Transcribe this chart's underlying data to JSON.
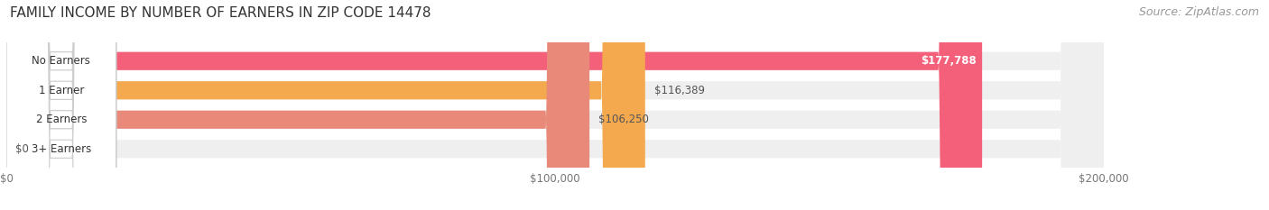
{
  "title": "FAMILY INCOME BY NUMBER OF EARNERS IN ZIP CODE 14478",
  "source": "Source: ZipAtlas.com",
  "categories": [
    "No Earners",
    "1 Earner",
    "2 Earners",
    "3+ Earners"
  ],
  "values": [
    177788,
    116389,
    106250,
    0
  ],
  "bar_colors": [
    "#f4607a",
    "#f5a94e",
    "#e8897a",
    "#a8bfe0"
  ],
  "bar_bg_color": "#efefef",
  "value_labels": [
    "$177,788",
    "$116,389",
    "$106,250",
    "$0"
  ],
  "value_label_inside": [
    true,
    false,
    false,
    false
  ],
  "xlim": [
    0,
    200000
  ],
  "xtick_labels": [
    "$0",
    "$100,000",
    "$200,000"
  ],
  "title_fontsize": 11,
  "source_fontsize": 9,
  "bar_height": 0.62,
  "figsize": [
    14.06,
    2.33
  ],
  "dpi": 100
}
